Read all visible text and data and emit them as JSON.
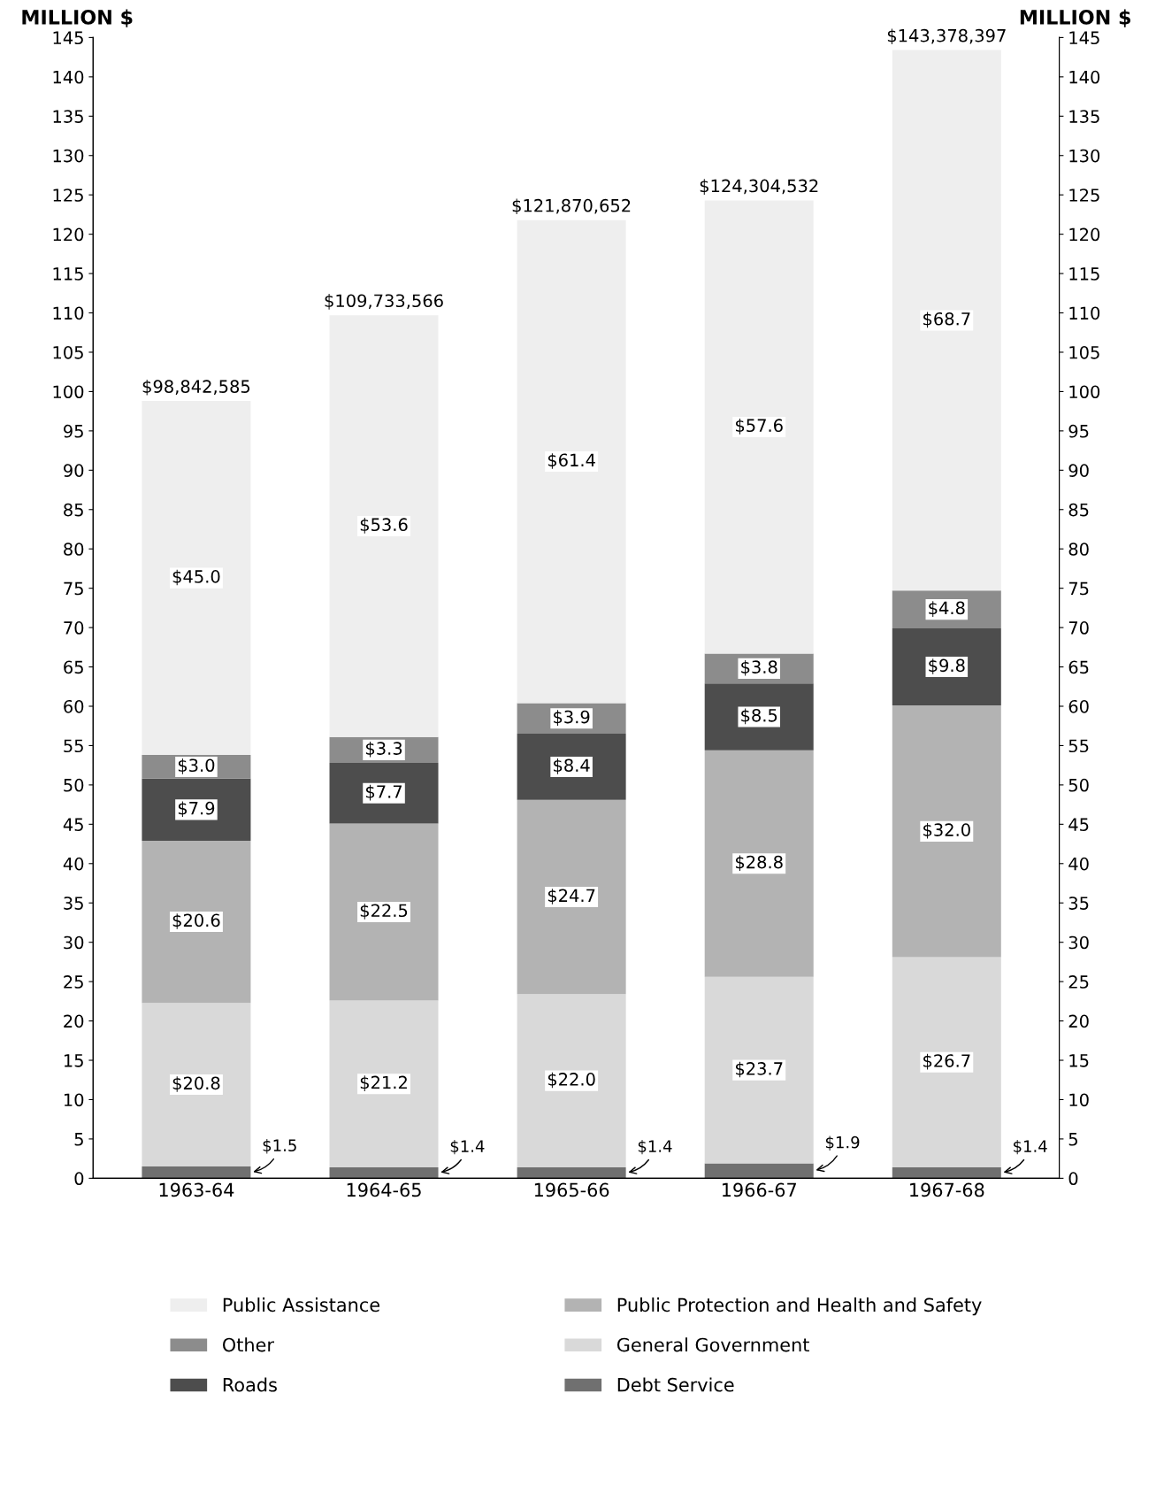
{
  "chart_data": {
    "type": "bar",
    "stacked": true,
    "ylabel": "MILLION $",
    "y2label": "MILLION $",
    "categories": [
      "1963-64",
      "1964-65",
      "1965-66",
      "1966-67",
      "1967-68"
    ],
    "series": [
      {
        "name": "Debt Service",
        "color": "#707070",
        "values": [
          1.5,
          1.4,
          1.4,
          1.9,
          1.4
        ],
        "value_labels": [
          "$1.5",
          "$1.4",
          "$1.4",
          "$1.9",
          "$1.4"
        ]
      },
      {
        "name": "General Government",
        "color": "#d9d9d9",
        "values": [
          20.8,
          21.2,
          22.0,
          23.7,
          26.7
        ],
        "value_labels": [
          "$20.8",
          "$21.2",
          "$22.0",
          "$23.7",
          "$26.7"
        ]
      },
      {
        "name": "Public Protection and Health and Safety",
        "color": "#b3b3b3",
        "values": [
          20.6,
          22.5,
          24.7,
          28.8,
          32.0
        ],
        "value_labels": [
          "$20.6",
          "$22.5",
          "$24.7",
          "$28.8",
          "$32.0"
        ]
      },
      {
        "name": "Roads",
        "color": "#4d4d4d",
        "values": [
          7.9,
          7.7,
          8.4,
          8.5,
          9.8
        ],
        "value_labels": [
          "$7.9",
          "$7.7",
          "$8.4",
          "$8.5",
          "$9.8"
        ]
      },
      {
        "name": "Other",
        "color": "#8c8c8c",
        "values": [
          3.0,
          3.3,
          3.9,
          3.8,
          4.8
        ],
        "value_labels": [
          "$3.0",
          "$3.3",
          "$3.9",
          "$3.8",
          "$4.8"
        ]
      },
      {
        "name": "Public Assistance",
        "color": "#eeeeee",
        "values": [
          45.0,
          53.6,
          61.4,
          57.6,
          68.7
        ],
        "value_labels": [
          "$45.0",
          "$53.6",
          "$61.4",
          "$57.6",
          "$68.7"
        ]
      }
    ],
    "annotations": [
      {
        "text": "$98,842,585",
        "x": "1963-64",
        "y": 98.8
      },
      {
        "text": "$109,733,566",
        "x": "1964-65",
        "y": 109.7
      },
      {
        "text": "$121,870,652",
        "x": "1965-66",
        "y": 121.8
      },
      {
        "text": "$124,304,532",
        "x": "1966-67",
        "y": 124.3
      },
      {
        "text": "$143,378,397",
        "x": "1967-68",
        "y": 143.4
      }
    ],
    "ylim": [
      0,
      145
    ],
    "yticks": [
      0,
      5,
      10,
      15,
      20,
      25,
      30,
      35,
      40,
      45,
      50,
      55,
      60,
      65,
      70,
      75,
      80,
      85,
      90,
      95,
      100,
      105,
      110,
      115,
      120,
      125,
      130,
      135,
      140,
      145
    ],
    "y2lim": [
      0,
      145
    ],
    "y2ticks": [
      0,
      5,
      10,
      15,
      20,
      25,
      30,
      35,
      40,
      45,
      50,
      55,
      60,
      65,
      70,
      75,
      80,
      85,
      90,
      95,
      100,
      105,
      110,
      115,
      120,
      125,
      130,
      135,
      140,
      145
    ],
    "grid": false,
    "legend": "bottom"
  }
}
